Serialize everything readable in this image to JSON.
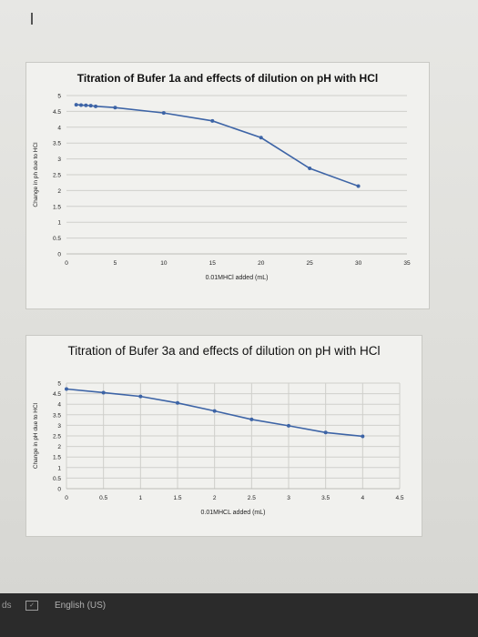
{
  "chart_data": [
    {
      "type": "line",
      "title": "Titration of Bufer 1a and effects of dilution on pH with HCl",
      "xlabel": "0.01MHCl added (mL)",
      "ylabel": "Change in ph due to HCl",
      "xlim": [
        0,
        35
      ],
      "ylim": [
        0,
        5
      ],
      "xticks": [
        "0",
        "5",
        "10",
        "15",
        "20",
        "25",
        "30",
        "35"
      ],
      "yticks": [
        "0",
        "0.5",
        "1",
        "1.5",
        "2",
        "2.5",
        "3",
        "3.5",
        "4",
        "4.5",
        "5"
      ],
      "grid": true,
      "series": [
        {
          "color": "#3d64a6",
          "points": [
            [
              1,
              4.71
            ],
            [
              1.5,
              4.7
            ],
            [
              2,
              4.69
            ],
            [
              2.5,
              4.68
            ],
            [
              3,
              4.66
            ],
            [
              5,
              4.62
            ],
            [
              10,
              4.45
            ],
            [
              15,
              4.2
            ],
            [
              20,
              3.67
            ],
            [
              25,
              2.7
            ],
            [
              30,
              2.14
            ]
          ]
        }
      ]
    },
    {
      "type": "line",
      "title": "Titration of Bufer 3a and effects of dilution on pH with HCl",
      "xlabel": "0.01MHCL added (mL)",
      "ylabel": "Change in pH due to HCl",
      "xlim": [
        0,
        4.5
      ],
      "ylim": [
        0,
        5
      ],
      "xticks": [
        "0",
        "0.5",
        "1",
        "1.5",
        "2",
        "2.5",
        "3",
        "3.5",
        "4",
        "4.5"
      ],
      "yticks": [
        "0",
        "0.5",
        "1",
        "1.5",
        "2",
        "2.5",
        "3",
        "3.5",
        "4",
        "4.5",
        "5"
      ],
      "grid": true,
      "series": [
        {
          "color": "#3d64a6",
          "points": [
            [
              0,
              4.72
            ],
            [
              0.5,
              4.55
            ],
            [
              1,
              4.37
            ],
            [
              1.5,
              4.06
            ],
            [
              2,
              3.68
            ],
            [
              2.5,
              3.28
            ],
            [
              3,
              2.98
            ],
            [
              3.5,
              2.66
            ],
            [
              4,
              2.48
            ]
          ]
        }
      ]
    }
  ],
  "status_bar": {
    "left_text": "ds",
    "language": "English (US)"
  }
}
